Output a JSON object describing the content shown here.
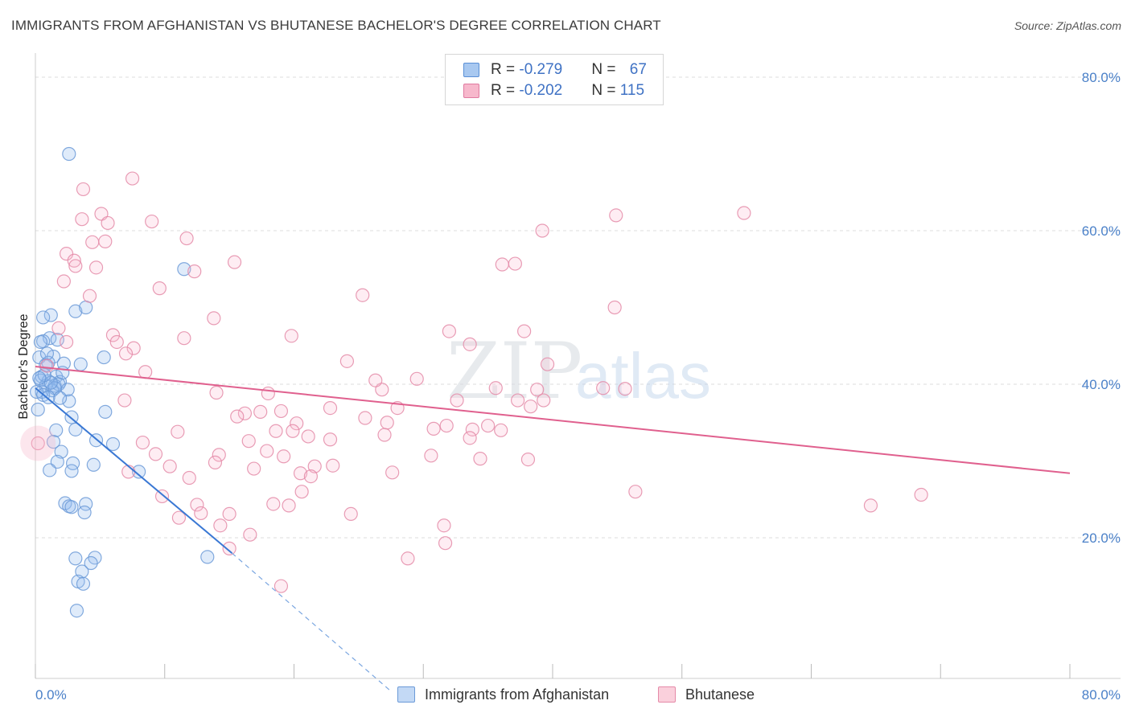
{
  "title": "IMMIGRANTS FROM AFGHANISTAN VS BHUTANESE BACHELOR'S DEGREE CORRELATION CHART",
  "source": "Source: ZipAtlas.com",
  "watermark": {
    "zip": "ZIP",
    "atlas": "atlas"
  },
  "legend": {
    "rows": [
      {
        "r_label": "R = ",
        "r_value": "-0.279",
        "n_label": "N = ",
        "n_value": "67",
        "color": "#a8c8f0",
        "border": "#5a8fd6"
      },
      {
        "r_label": "R = ",
        "r_value": "-0.202",
        "n_label": "N = ",
        "n_value": "115",
        "color": "#f7b8cc",
        "border": "#e07aa0"
      }
    ]
  },
  "bottom_legend": [
    {
      "label": "Immigrants from Afghanistan",
      "color": "#c3d9f5",
      "border": "#6b9ad8"
    },
    {
      "label": "Bhutanese",
      "color": "#fad0dc",
      "border": "#e58aa8"
    }
  ],
  "chart_data": {
    "type": "scatter",
    "title": "IMMIGRANTS FROM AFGHANISTAN VS BHUTANESE BACHELOR'S DEGREE CORRELATION CHART",
    "xlabel": "",
    "ylabel": "Bachelor's Degree",
    "xlim": [
      0,
      80
    ],
    "ylim": [
      0,
      80
    ],
    "x_tick_labels": [
      "0.0%",
      "80.0%"
    ],
    "y_ticks": [
      20,
      40,
      60,
      80
    ],
    "y_tick_labels": [
      "20.0%",
      "40.0%",
      "60.0%",
      "80.0%"
    ],
    "series": [
      {
        "name": "Immigrants from Afghanistan",
        "color": "#6b9ad8",
        "fill": "rgba(150,190,240,0.35)",
        "trend": {
          "x0": 0,
          "y0": 39.5,
          "x1": 15.2,
          "y1": 18.0,
          "dash_to_x": 27.5,
          "dash_to_y": 0
        },
        "points": [
          [
            2.6,
            70.0
          ],
          [
            11.5,
            55.0
          ],
          [
            1.2,
            49.0
          ],
          [
            3.1,
            49.5
          ],
          [
            3.9,
            50.0
          ],
          [
            0.6,
            48.7
          ],
          [
            1.1,
            46.0
          ],
          [
            0.6,
            45.6
          ],
          [
            1.7,
            45.8
          ],
          [
            0.3,
            43.5
          ],
          [
            1.4,
            43.6
          ],
          [
            5.3,
            43.5
          ],
          [
            1.0,
            42.8
          ],
          [
            0.8,
            42.5
          ],
          [
            2.2,
            42.7
          ],
          [
            3.5,
            42.6
          ],
          [
            0.5,
            41.0
          ],
          [
            1.6,
            41.0
          ],
          [
            1.9,
            40.3
          ],
          [
            0.4,
            40.5
          ],
          [
            1.0,
            40.4
          ],
          [
            1.5,
            39.8
          ],
          [
            0.5,
            39.0
          ],
          [
            1.8,
            40.0
          ],
          [
            0.8,
            39.8
          ],
          [
            0.1,
            39.0
          ],
          [
            1.3,
            39.2
          ],
          [
            0.6,
            38.6
          ],
          [
            0.2,
            36.7
          ],
          [
            2.6,
            37.8
          ],
          [
            5.4,
            36.4
          ],
          [
            2.8,
            35.7
          ],
          [
            3.1,
            34.1
          ],
          [
            1.6,
            34.0
          ],
          [
            1.4,
            32.5
          ],
          [
            4.7,
            32.7
          ],
          [
            6.0,
            32.2
          ],
          [
            2.0,
            31.2
          ],
          [
            1.7,
            29.9
          ],
          [
            2.9,
            29.7
          ],
          [
            4.5,
            29.5
          ],
          [
            1.1,
            28.8
          ],
          [
            2.8,
            28.7
          ],
          [
            8.0,
            28.6
          ],
          [
            2.3,
            24.5
          ],
          [
            2.6,
            24.1
          ],
          [
            2.8,
            24.0
          ],
          [
            3.9,
            24.4
          ],
          [
            3.8,
            23.3
          ],
          [
            3.1,
            17.3
          ],
          [
            4.6,
            17.4
          ],
          [
            13.3,
            17.5
          ],
          [
            4.3,
            16.7
          ],
          [
            3.6,
            15.6
          ],
          [
            3.3,
            14.3
          ],
          [
            3.7,
            14.0
          ],
          [
            3.2,
            10.5
          ],
          [
            1.5,
            39.5
          ],
          [
            2.1,
            41.5
          ],
          [
            0.9,
            44.0
          ],
          [
            0.4,
            45.5
          ],
          [
            2.5,
            39.3
          ],
          [
            1.2,
            40.2
          ],
          [
            0.7,
            41.2
          ],
          [
            1.9,
            38.2
          ],
          [
            0.3,
            40.8
          ],
          [
            1.0,
            38.3
          ]
        ]
      },
      {
        "name": "Bhutanese",
        "color": "#e58aa8",
        "fill": "rgba(247,184,204,0.3)",
        "trend": {
          "x0": 0,
          "y0": 42.3,
          "x1": 80,
          "y1": 28.4
        },
        "points": [
          [
            0.2,
            32.3
          ],
          [
            7.5,
            66.8
          ],
          [
            3.7,
            65.4
          ],
          [
            5.1,
            62.2
          ],
          [
            3.6,
            61.5
          ],
          [
            9.0,
            61.2
          ],
          [
            5.6,
            61.0
          ],
          [
            11.7,
            59.0
          ],
          [
            44.9,
            62.0
          ],
          [
            54.8,
            62.3
          ],
          [
            39.2,
            60.0
          ],
          [
            2.4,
            57.0
          ],
          [
            4.4,
            58.5
          ],
          [
            5.4,
            58.6
          ],
          [
            3.0,
            56.1
          ],
          [
            15.4,
            55.9
          ],
          [
            3.1,
            55.4
          ],
          [
            4.7,
            55.2
          ],
          [
            12.3,
            54.7
          ],
          [
            36.1,
            55.6
          ],
          [
            37.1,
            55.7
          ],
          [
            2.2,
            53.4
          ],
          [
            9.6,
            52.5
          ],
          [
            4.2,
            51.5
          ],
          [
            25.3,
            51.6
          ],
          [
            44.8,
            50.0
          ],
          [
            13.8,
            48.6
          ],
          [
            1.8,
            47.3
          ],
          [
            32.0,
            46.9
          ],
          [
            37.8,
            46.9
          ],
          [
            6.0,
            46.4
          ],
          [
            11.5,
            46.0
          ],
          [
            19.8,
            46.3
          ],
          [
            2.4,
            45.5
          ],
          [
            6.3,
            45.5
          ],
          [
            33.6,
            45.2
          ],
          [
            7.6,
            44.7
          ],
          [
            7.0,
            44.0
          ],
          [
            24.1,
            43.0
          ],
          [
            39.6,
            42.6
          ],
          [
            0.9,
            42.4
          ],
          [
            8.5,
            41.6
          ],
          [
            29.5,
            40.7
          ],
          [
            43.9,
            39.5
          ],
          [
            45.6,
            39.4
          ],
          [
            35.6,
            39.5
          ],
          [
            26.8,
            39.3
          ],
          [
            38.8,
            39.3
          ],
          [
            14.0,
            38.9
          ],
          [
            18.0,
            38.8
          ],
          [
            6.9,
            37.9
          ],
          [
            32.6,
            37.9
          ],
          [
            37.3,
            37.9
          ],
          [
            39.3,
            37.9
          ],
          [
            38.3,
            37.1
          ],
          [
            22.8,
            36.9
          ],
          [
            28.0,
            36.9
          ],
          [
            16.2,
            36.2
          ],
          [
            17.4,
            36.4
          ],
          [
            19.0,
            36.5
          ],
          [
            25.5,
            35.6
          ],
          [
            15.6,
            35.8
          ],
          [
            27.2,
            35.0
          ],
          [
            20.2,
            34.9
          ],
          [
            35.0,
            34.6
          ],
          [
            36.0,
            34.0
          ],
          [
            33.8,
            34.1
          ],
          [
            30.8,
            34.2
          ],
          [
            31.8,
            34.6
          ],
          [
            19.9,
            33.9
          ],
          [
            11.0,
            33.8
          ],
          [
            18.6,
            33.9
          ],
          [
            21.1,
            33.2
          ],
          [
            33.6,
            33.0
          ],
          [
            27.0,
            33.4
          ],
          [
            22.8,
            32.8
          ],
          [
            16.5,
            32.6
          ],
          [
            8.3,
            32.4
          ],
          [
            17.9,
            31.3
          ],
          [
            14.2,
            30.8
          ],
          [
            19.2,
            30.6
          ],
          [
            30.6,
            30.7
          ],
          [
            34.4,
            30.3
          ],
          [
            38.1,
            30.2
          ],
          [
            9.3,
            30.9
          ],
          [
            13.9,
            29.8
          ],
          [
            21.6,
            29.3
          ],
          [
            10.4,
            29.3
          ],
          [
            23.0,
            29.4
          ],
          [
            16.9,
            29.0
          ],
          [
            27.6,
            28.5
          ],
          [
            20.5,
            28.4
          ],
          [
            7.2,
            28.6
          ],
          [
            11.9,
            27.8
          ],
          [
            21.3,
            28.0
          ],
          [
            20.6,
            26.0
          ],
          [
            9.8,
            25.4
          ],
          [
            46.4,
            26.0
          ],
          [
            64.6,
            24.2
          ],
          [
            68.5,
            25.6
          ],
          [
            12.5,
            24.3
          ],
          [
            18.4,
            24.4
          ],
          [
            19.6,
            24.2
          ],
          [
            12.8,
            23.2
          ],
          [
            15.0,
            23.1
          ],
          [
            24.4,
            23.1
          ],
          [
            11.1,
            22.6
          ],
          [
            14.3,
            21.6
          ],
          [
            31.6,
            21.6
          ],
          [
            16.6,
            20.4
          ],
          [
            31.7,
            19.3
          ],
          [
            15.0,
            18.6
          ],
          [
            28.8,
            17.3
          ],
          [
            19.0,
            13.7
          ],
          [
            26.3,
            40.5
          ]
        ]
      }
    ]
  }
}
